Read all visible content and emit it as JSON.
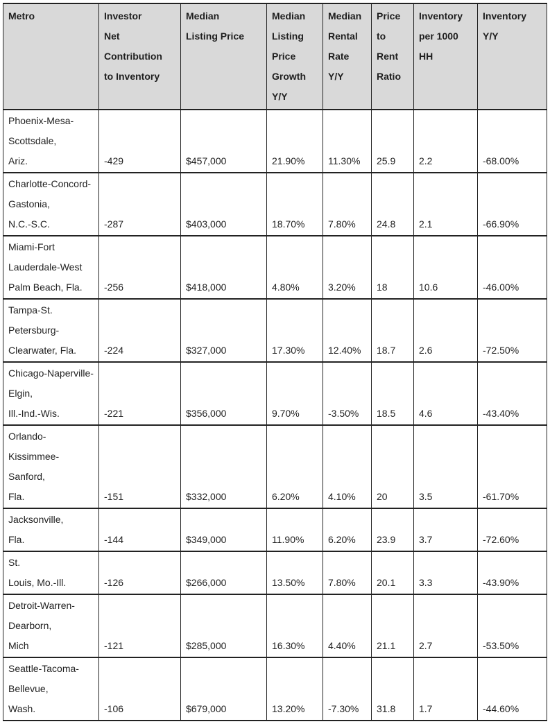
{
  "colors": {
    "header_bg": "#d9d9d9",
    "border": "#222222",
    "text": "#1f1f1f"
  },
  "table": {
    "column_keys": [
      "metro",
      "investor_net_contribution",
      "median_listing_price",
      "median_listing_price_growth_yy",
      "median_rental_rate_yy",
      "price_to_rent_ratio",
      "inventory_per_1000_hh",
      "inventory_yy"
    ],
    "columns": [
      {
        "key": "metro",
        "label": "Metro"
      },
      {
        "key": "investor_net_contribution",
        "label": "Investor\nNet\nContribution\nto Inventory"
      },
      {
        "key": "median_listing_price",
        "label": "Median\nListing Price"
      },
      {
        "key": "median_listing_price_growth_yy",
        "label": "Median\nListing\nPrice\nGrowth\nY/Y"
      },
      {
        "key": "median_rental_rate_yy",
        "label": "Median\nRental\nRate\nY/Y"
      },
      {
        "key": "price_to_rent_ratio",
        "label": "Price\nto\nRent\nRatio"
      },
      {
        "key": "inventory_per_1000_hh",
        "label": "Inventory\nper 1000\nHH"
      },
      {
        "key": "inventory_yy",
        "label": "Inventory\nY/Y"
      }
    ],
    "rows": [
      {
        "metro": "Phoenix-Mesa-\nScottsdale,\nAriz.",
        "investor_net_contribution": "-429",
        "median_listing_price": "$457,000",
        "median_listing_price_growth_yy": "21.90%",
        "median_rental_rate_yy": "11.30%",
        "price_to_rent_ratio": "25.9",
        "inventory_per_1000_hh": "2.2",
        "inventory_yy": "-68.00%"
      },
      {
        "metro": "Charlotte-Concord-\nGastonia,\nN.C.-S.C.",
        "investor_net_contribution": "-287",
        "median_listing_price": "$403,000",
        "median_listing_price_growth_yy": "18.70%",
        "median_rental_rate_yy": "7.80%",
        "price_to_rent_ratio": "24.8",
        "inventory_per_1000_hh": "2.1",
        "inventory_yy": "-66.90%"
      },
      {
        "metro": "Miami-Fort\nLauderdale-West\nPalm Beach, Fla.",
        "investor_net_contribution": "-256",
        "median_listing_price": "$418,000",
        "median_listing_price_growth_yy": "4.80%",
        "median_rental_rate_yy": "3.20%",
        "price_to_rent_ratio": "18",
        "inventory_per_1000_hh": "10.6",
        "inventory_yy": "-46.00%"
      },
      {
        "metro": "Tampa-St.\nPetersburg-\nClearwater, Fla.",
        "investor_net_contribution": "-224",
        "median_listing_price": "$327,000",
        "median_listing_price_growth_yy": "17.30%",
        "median_rental_rate_yy": "12.40%",
        "price_to_rent_ratio": "18.7",
        "inventory_per_1000_hh": "2.6",
        "inventory_yy": "-72.50%"
      },
      {
        "metro": "Chicago-Naperville-\nElgin,\nIll.-Ind.-Wis.",
        "investor_net_contribution": "-221",
        "median_listing_price": "$356,000",
        "median_listing_price_growth_yy": "9.70%",
        "median_rental_rate_yy": "-3.50%",
        "price_to_rent_ratio": "18.5",
        "inventory_per_1000_hh": "4.6",
        "inventory_yy": "-43.40%"
      },
      {
        "metro": "Orlando-\nKissimmee-\nSanford,\nFla.",
        "investor_net_contribution": "-151",
        "median_listing_price": "$332,000",
        "median_listing_price_growth_yy": "6.20%",
        "median_rental_rate_yy": "4.10%",
        "price_to_rent_ratio": "20",
        "inventory_per_1000_hh": "3.5",
        "inventory_yy": "-61.70%"
      },
      {
        "metro": "Jacksonville,\nFla.",
        "investor_net_contribution": "-144",
        "median_listing_price": "$349,000",
        "median_listing_price_growth_yy": "11.90%",
        "median_rental_rate_yy": "6.20%",
        "price_to_rent_ratio": "23.9",
        "inventory_per_1000_hh": "3.7",
        "inventory_yy": "-72.60%"
      },
      {
        "metro": "St.\nLouis, Mo.-Ill.",
        "investor_net_contribution": "-126",
        "median_listing_price": "$266,000",
        "median_listing_price_growth_yy": "13.50%",
        "median_rental_rate_yy": "7.80%",
        "price_to_rent_ratio": "20.1",
        "inventory_per_1000_hh": "3.3",
        "inventory_yy": "-43.90%"
      },
      {
        "metro": "Detroit-Warren-\nDearborn,\nMich",
        "investor_net_contribution": "-121",
        "median_listing_price": "$285,000",
        "median_listing_price_growth_yy": "16.30%",
        "median_rental_rate_yy": "4.40%",
        "price_to_rent_ratio": "21.1",
        "inventory_per_1000_hh": "2.7",
        "inventory_yy": "-53.50%"
      },
      {
        "metro": "Seattle-Tacoma-\nBellevue,\nWash.",
        "investor_net_contribution": "-106",
        "median_listing_price": "$679,000",
        "median_listing_price_growth_yy": "13.20%",
        "median_rental_rate_yy": "-7.30%",
        "price_to_rent_ratio": "31.8",
        "inventory_per_1000_hh": "1.7",
        "inventory_yy": "-44.60%"
      }
    ]
  }
}
